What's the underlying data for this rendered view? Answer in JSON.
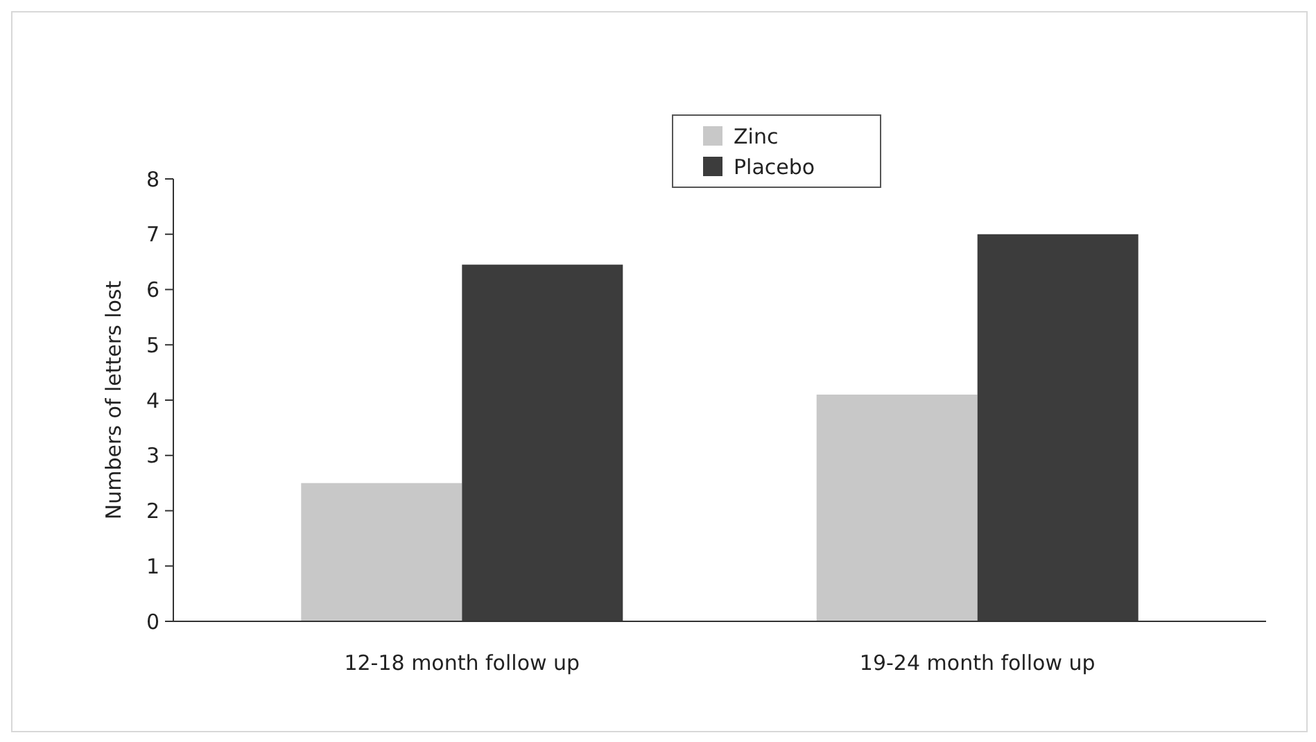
{
  "chart_data": {
    "type": "bar",
    "ylabel": "Numbers of letters lost",
    "categories": [
      "12-18 month follow up",
      "19-24 month follow up"
    ],
    "series": [
      {
        "name": "Zinc",
        "color": "#c8c8c8",
        "values": [
          2.5,
          4.1
        ]
      },
      {
        "name": "Placebo",
        "color": "#3c3c3c",
        "values": [
          6.45,
          7.0
        ]
      }
    ],
    "ylim": [
      0,
      8
    ],
    "yticks": [
      0,
      1,
      2,
      3,
      4,
      5,
      6,
      7,
      8
    ],
    "legend": "top"
  }
}
